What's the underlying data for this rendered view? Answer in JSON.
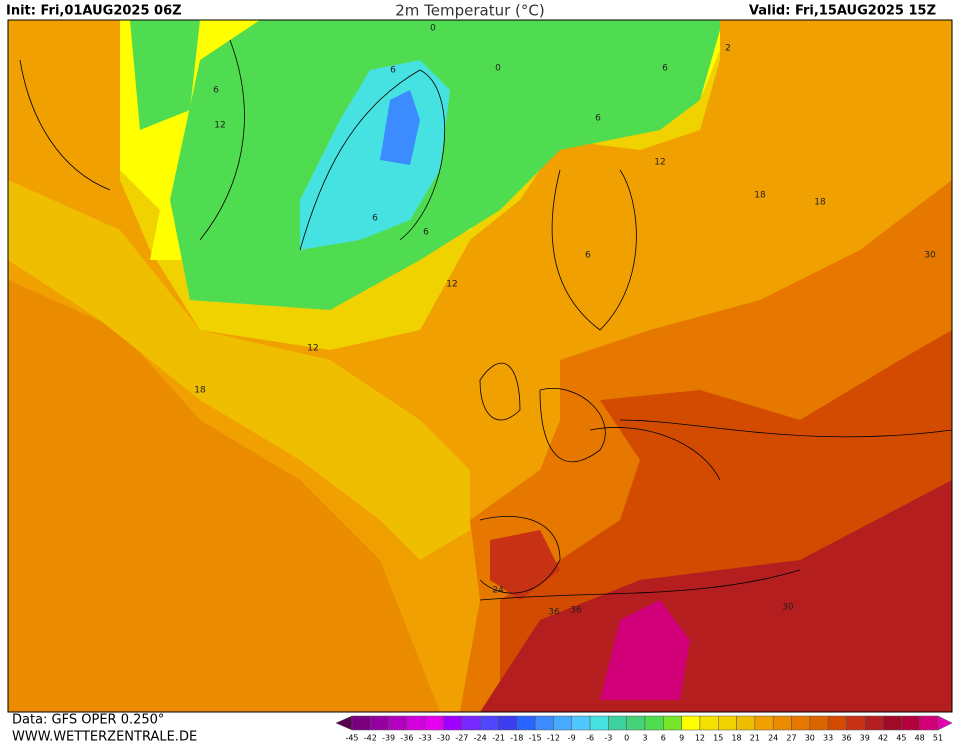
{
  "header": {
    "init": "Init: Fri,01AUG2025 06Z",
    "title": "2m Temperatur (°C)",
    "valid": "Valid: Fri,15AUG2025 15Z"
  },
  "footer": {
    "source": "Data: GFS OPER 0.250°",
    "site": "WWW.WETTERZENTRALE.DE"
  },
  "map": {
    "contour_labels": [
      "0",
      "6",
      "6",
      "0",
      "6",
      "6",
      "12",
      "2",
      "6",
      "6",
      "12",
      "12",
      "12",
      "18",
      "18",
      "18",
      "30",
      "24",
      "36",
      "36",
      "30",
      "6"
    ]
  },
  "colorbar": {
    "levels": [
      -45,
      -42,
      -39,
      -36,
      -33,
      -30,
      -27,
      -24,
      -21,
      -18,
      -15,
      -12,
      -9,
      -6,
      -3,
      0,
      3,
      6,
      9,
      12,
      15,
      18,
      21,
      24,
      27,
      30,
      33,
      36,
      39,
      42,
      45,
      48,
      51
    ],
    "colors": [
      "#5a0050",
      "#7a0080",
      "#9600a0",
      "#b400be",
      "#d200dc",
      "#e600f0",
      "#a000ff",
      "#7828ff",
      "#5046ff",
      "#3c3cf0",
      "#2864ff",
      "#3c8cff",
      "#46aaff",
      "#50c8ff",
      "#46e1e1",
      "#3cd2a0",
      "#46d278",
      "#50dc50",
      "#78e628",
      "#ffff00",
      "#f5e100",
      "#f0d200",
      "#f0be00",
      "#f0a000",
      "#eb8c00",
      "#e67800",
      "#dc6400",
      "#d24b00",
      "#c83214",
      "#b41e1e",
      "#a00a28",
      "#b4003c",
      "#d20078",
      "#e600b4"
    ]
  }
}
